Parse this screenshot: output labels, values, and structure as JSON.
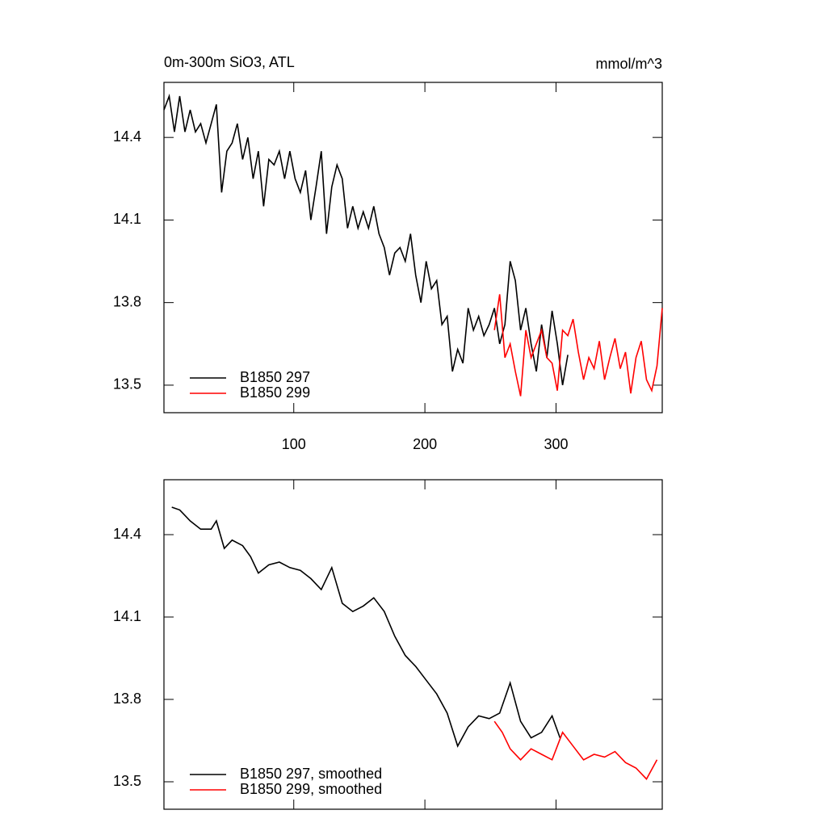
{
  "chart_data": [
    {
      "type": "line",
      "title": "0m-300m SiO3, ATL",
      "units": "mmol/m^3",
      "xlim": [
        1,
        381
      ],
      "xticks": [
        100,
        200,
        300
      ],
      "ylim": [
        13.4,
        14.6
      ],
      "yticks": [
        14.4,
        14.1,
        13.8,
        13.5
      ],
      "xtick_labels": true,
      "legend": "lower left",
      "series": [
        {
          "name": "B1850 297",
          "color": "#000000",
          "x": [
            1,
            5,
            9,
            13,
            17,
            21,
            25,
            29,
            33,
            37,
            41,
            45,
            49,
            53,
            57,
            61,
            65,
            69,
            73,
            77,
            81,
            85,
            89,
            93,
            97,
            101,
            105,
            109,
            113,
            117,
            121,
            125,
            129,
            133,
            137,
            141,
            145,
            149,
            153,
            157,
            161,
            165,
            169,
            173,
            177,
            181,
            185,
            189,
            193,
            197,
            201,
            205,
            209,
            213,
            217,
            221,
            225,
            229,
            233,
            237,
            241,
            245,
            249,
            253,
            257,
            261,
            265,
            269,
            273,
            277,
            281,
            285,
            289,
            293,
            297,
            301,
            305,
            309
          ],
          "values": [
            14.5,
            14.55,
            14.42,
            14.55,
            14.42,
            14.5,
            14.42,
            14.45,
            14.38,
            14.45,
            14.52,
            14.2,
            14.35,
            14.38,
            14.45,
            14.32,
            14.4,
            14.25,
            14.35,
            14.15,
            14.32,
            14.3,
            14.35,
            14.25,
            14.35,
            14.25,
            14.2,
            14.28,
            14.1,
            14.22,
            14.35,
            14.05,
            14.22,
            14.3,
            14.25,
            14.07,
            14.15,
            14.07,
            14.13,
            14.07,
            14.15,
            14.05,
            14.0,
            13.9,
            13.98,
            14.0,
            13.95,
            14.05,
            13.9,
            13.8,
            13.95,
            13.85,
            13.88,
            13.72,
            13.75,
            13.55,
            13.63,
            13.58,
            13.78,
            13.7,
            13.75,
            13.68,
            13.72,
            13.78,
            13.65,
            13.72,
            13.95,
            13.88,
            13.7,
            13.78,
            13.65,
            13.55,
            13.72,
            13.6,
            13.77,
            13.65,
            13.5,
            13.61
          ]
        },
        {
          "name": "B1850 299",
          "color": "#ff0000",
          "x": [
            253,
            257,
            261,
            265,
            269,
            273,
            277,
            281,
            285,
            289,
            293,
            297,
            301,
            305,
            309,
            313,
            317,
            321,
            325,
            329,
            333,
            337,
            341,
            345,
            349,
            353,
            357,
            361,
            365,
            369,
            373,
            377,
            381
          ],
          "values": [
            13.7,
            13.83,
            13.6,
            13.65,
            13.55,
            13.46,
            13.7,
            13.6,
            13.65,
            13.7,
            13.6,
            13.58,
            13.48,
            13.7,
            13.68,
            13.74,
            13.62,
            13.52,
            13.6,
            13.56,
            13.66,
            13.52,
            13.6,
            13.67,
            13.56,
            13.62,
            13.47,
            13.6,
            13.66,
            13.52,
            13.48,
            13.57,
            13.78
          ]
        }
      ]
    },
    {
      "type": "line",
      "xlim": [
        1,
        381
      ],
      "xticks": [
        100,
        200,
        300
      ],
      "ylim": [
        13.4,
        14.6
      ],
      "yticks": [
        14.4,
        14.1,
        13.8,
        13.5
      ],
      "xtick_labels": false,
      "legend": "lower left",
      "series": [
        {
          "name": "B1850 297, smoothed",
          "color": "#000000",
          "x": [
            7,
            13,
            21,
            29,
            37,
            41,
            47,
            53,
            61,
            67,
            73,
            81,
            89,
            97,
            105,
            113,
            121,
            129,
            137,
            145,
            153,
            161,
            169,
            177,
            185,
            193,
            201,
            209,
            217,
            225,
            233,
            241,
            249,
            257,
            265,
            273,
            281,
            289,
            297,
            303
          ],
          "values": [
            14.5,
            14.49,
            14.45,
            14.42,
            14.42,
            14.45,
            14.35,
            14.38,
            14.36,
            14.32,
            14.26,
            14.29,
            14.3,
            14.28,
            14.27,
            14.24,
            14.2,
            14.28,
            14.15,
            14.12,
            14.14,
            14.17,
            14.12,
            14.03,
            13.96,
            13.92,
            13.87,
            13.82,
            13.75,
            13.63,
            13.7,
            13.74,
            13.73,
            13.75,
            13.86,
            13.72,
            13.66,
            13.68,
            13.74,
            13.66
          ]
        },
        {
          "name": "B1850 299, smoothed",
          "color": "#ff0000",
          "x": [
            253,
            259,
            265,
            273,
            281,
            289,
            297,
            305,
            313,
            321,
            329,
            337,
            345,
            353,
            361,
            369,
            377
          ],
          "values": [
            13.72,
            13.68,
            13.62,
            13.58,
            13.62,
            13.6,
            13.58,
            13.68,
            13.63,
            13.58,
            13.6,
            13.59,
            13.61,
            13.57,
            13.55,
            13.51,
            13.58
          ]
        }
      ]
    }
  ]
}
